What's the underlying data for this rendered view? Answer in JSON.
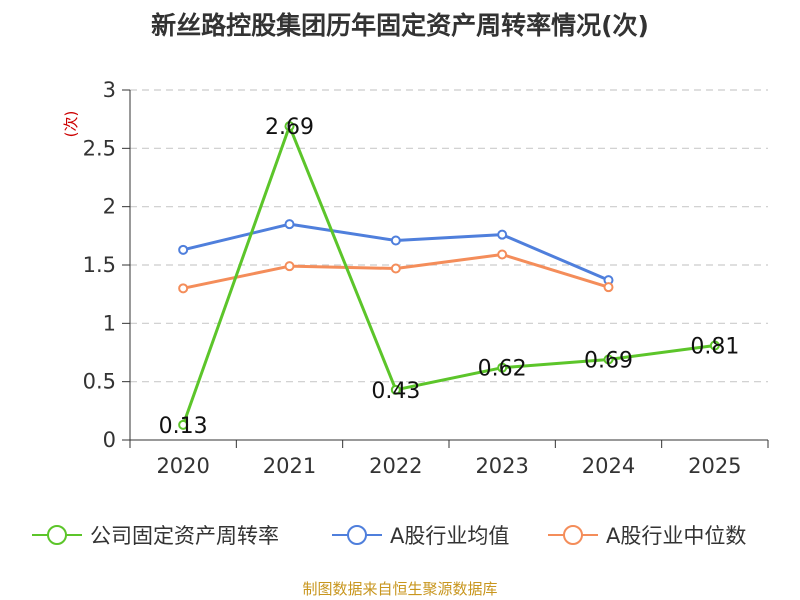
{
  "chart_data": {
    "type": "line",
    "title": "新丝路控股集团历年固定资产周转率情况(次)",
    "ylabel": "(次)",
    "xlabel": "",
    "categories": [
      "2020",
      "2021",
      "2022",
      "2023",
      "2024",
      "2025"
    ],
    "ylim": [
      0,
      3
    ],
    "yticks": [
      "0",
      "0.5",
      "1",
      "1.5",
      "2",
      "2.5",
      "3"
    ],
    "grid": true,
    "legend_position": "bottom",
    "series": [
      {
        "name": "公司固定资产周转率",
        "color": "#5cc52a",
        "values": [
          0.13,
          2.69,
          0.43,
          0.62,
          0.69,
          0.81
        ],
        "labels": [
          "0.13",
          "2.69",
          "0.43",
          "0.62",
          "0.69",
          "0.81"
        ]
      },
      {
        "name": "A股行业均值",
        "color": "#4f7fdc",
        "values": [
          1.63,
          1.85,
          1.71,
          1.76,
          1.37,
          null
        ]
      },
      {
        "name": "A股行业中位数",
        "color": "#f48d5a",
        "values": [
          1.3,
          1.49,
          1.47,
          1.59,
          1.31,
          null
        ]
      }
    ]
  },
  "footer": {
    "source": "制图数据来自恒生聚源数据库"
  }
}
